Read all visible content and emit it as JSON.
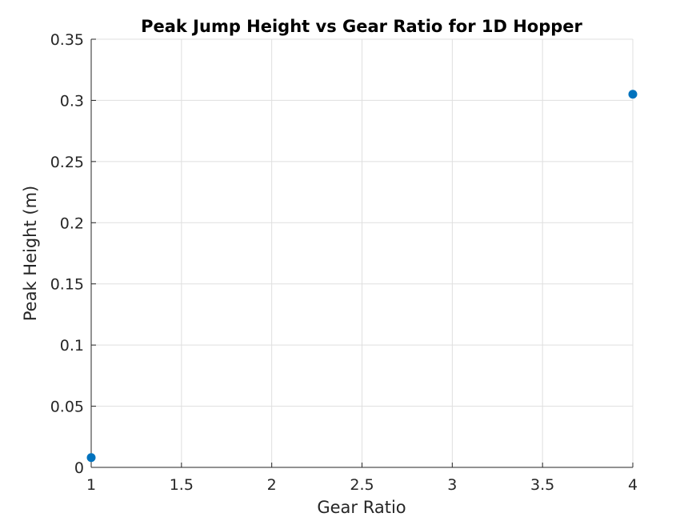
{
  "chart_data": {
    "type": "scatter",
    "title": "Peak Jump Height vs Gear Ratio for 1D Hopper",
    "xlabel": "Gear Ratio",
    "ylabel": "Peak Height (m)",
    "xlim": [
      1,
      4
    ],
    "ylim": [
      0,
      0.35
    ],
    "xticks": [
      1,
      1.5,
      2,
      2.5,
      3,
      3.5,
      4
    ],
    "xtick_labels": [
      "1",
      "1.5",
      "2",
      "2.5",
      "3",
      "3.5",
      "4"
    ],
    "yticks": [
      0,
      0.05,
      0.1,
      0.15,
      0.2,
      0.25,
      0.3,
      0.35
    ],
    "ytick_labels": [
      "0",
      "0.05",
      "0.1",
      "0.15",
      "0.2",
      "0.25",
      "0.3",
      "0.35"
    ],
    "grid": true,
    "series": [
      {
        "x": [
          1,
          4
        ],
        "y": [
          0.008,
          0.305
        ],
        "color": "#0072BD"
      }
    ]
  }
}
